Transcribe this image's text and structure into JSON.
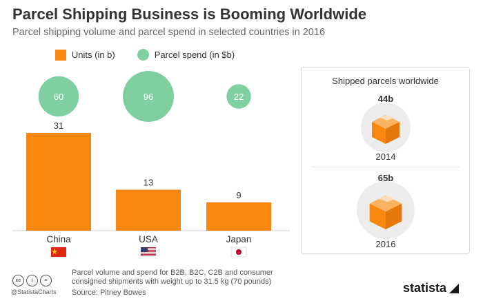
{
  "title": "Parcel Shipping Business is Booming Worldwide",
  "subtitle": "Parcel shipping volume and parcel spend in selected countries in 2016",
  "colors": {
    "units": "#f7870f",
    "spend": "#7fcfa0",
    "box": "#f7870f",
    "box_bg": "#ececec"
  },
  "chart_data": [
    {
      "type": "bar",
      "categories": [
        "China",
        "USA",
        "Japan"
      ],
      "series": [
        {
          "name": "Units (in b)",
          "values": [
            31,
            13,
            9
          ]
        },
        {
          "name": "Parcel spend (in $b)",
          "values": [
            60,
            96,
            22
          ]
        }
      ],
      "legend_position": "top",
      "grid": false
    },
    {
      "type": "table",
      "title": "Shipped parcels worldwide",
      "rows": [
        {
          "year": "2014",
          "value": "44b"
        },
        {
          "year": "2016",
          "value": "65b"
        }
      ]
    }
  ],
  "flags": [
    "china-flag",
    "usa-flag",
    "japan-flag"
  ],
  "footnote": "Parcel volume and spend for B2B, B2C, C2B and consumer consigned shipments with weight up to 31.5 kg (70 pounds)",
  "source": "Source: Pitney Bowes",
  "handle": "@StatistaCharts",
  "brand": "statista"
}
